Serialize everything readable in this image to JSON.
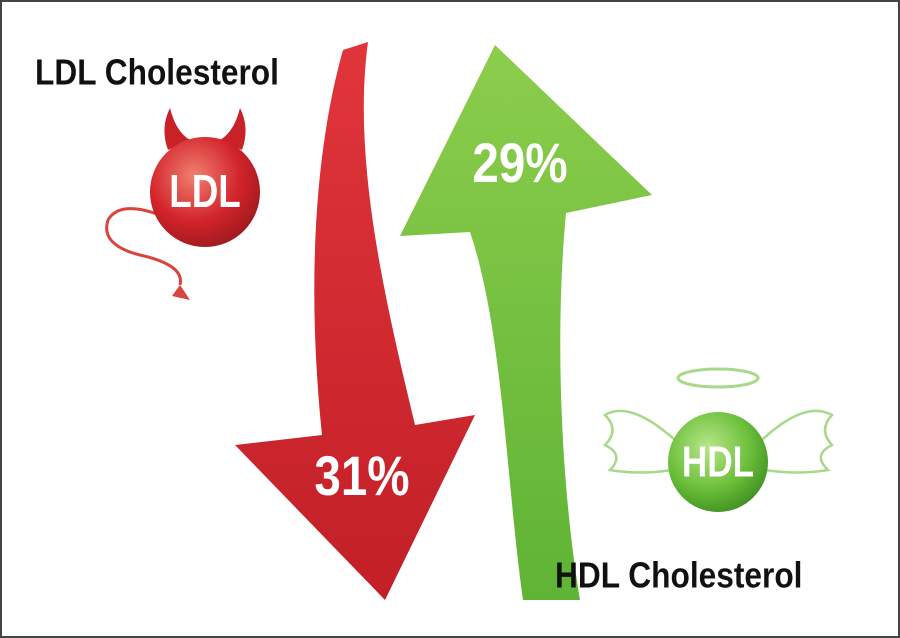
{
  "ldl": {
    "title": "LDL Cholesterol",
    "badge": "LDL",
    "change": "31%"
  },
  "hdl": {
    "title": "HDL Cholesterol",
    "badge": "HDL",
    "change": "29%"
  }
}
